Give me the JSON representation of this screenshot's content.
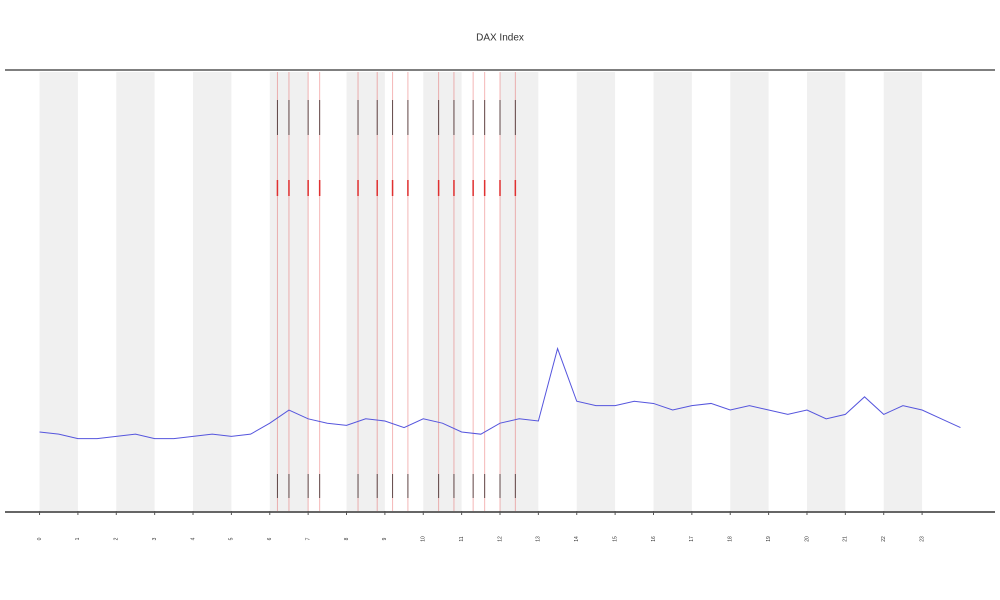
{
  "chart_data": {
    "type": "line",
    "title": "DAX Index",
    "x": [
      0,
      0.5,
      1,
      1.5,
      2,
      2.5,
      3,
      3.5,
      4,
      4.5,
      5,
      5.5,
      6,
      6.5,
      7,
      7.5,
      8,
      8.5,
      9,
      9.5,
      10,
      10.5,
      11,
      11.5,
      12,
      12.5,
      13,
      13.5,
      14,
      14.5,
      15,
      15.5,
      16,
      16.5,
      17,
      17.5,
      18,
      18.5,
      19,
      19.5,
      20,
      20.5,
      21,
      21.5,
      22,
      22.5,
      23,
      23.5,
      24
    ],
    "series": [
      {
        "color": "#5555dd",
        "values": [
          18,
          17.5,
          16.5,
          16.5,
          17,
          17.5,
          16.5,
          16.5,
          17,
          17.5,
          17,
          17.5,
          20,
          23,
          21,
          20,
          19.5,
          21,
          20.5,
          19,
          21,
          20,
          18,
          17.5,
          20,
          21,
          20.5,
          37,
          25,
          24,
          24,
          25,
          24.5,
          23,
          24,
          24.5,
          23,
          24,
          23,
          22,
          23,
          21,
          22,
          26,
          22,
          24,
          23,
          21,
          19
        ]
      }
    ],
    "events": [
      6.2,
      6.5,
      7,
      7.3,
      8.3,
      8.8,
      9.2,
      9.6,
      10.4,
      10.8,
      11.3,
      11.6,
      12.0,
      12.4
    ],
    "event_color": "#e03030",
    "xlim": [
      -0.9,
      24.9
    ],
    "ylim": [
      0,
      100
    ],
    "xticks": [
      0,
      1,
      2,
      3,
      4,
      5,
      6,
      7,
      8,
      9,
      10,
      11,
      12,
      13,
      14,
      15,
      16,
      17,
      18,
      19,
      20,
      21,
      22,
      23
    ]
  }
}
